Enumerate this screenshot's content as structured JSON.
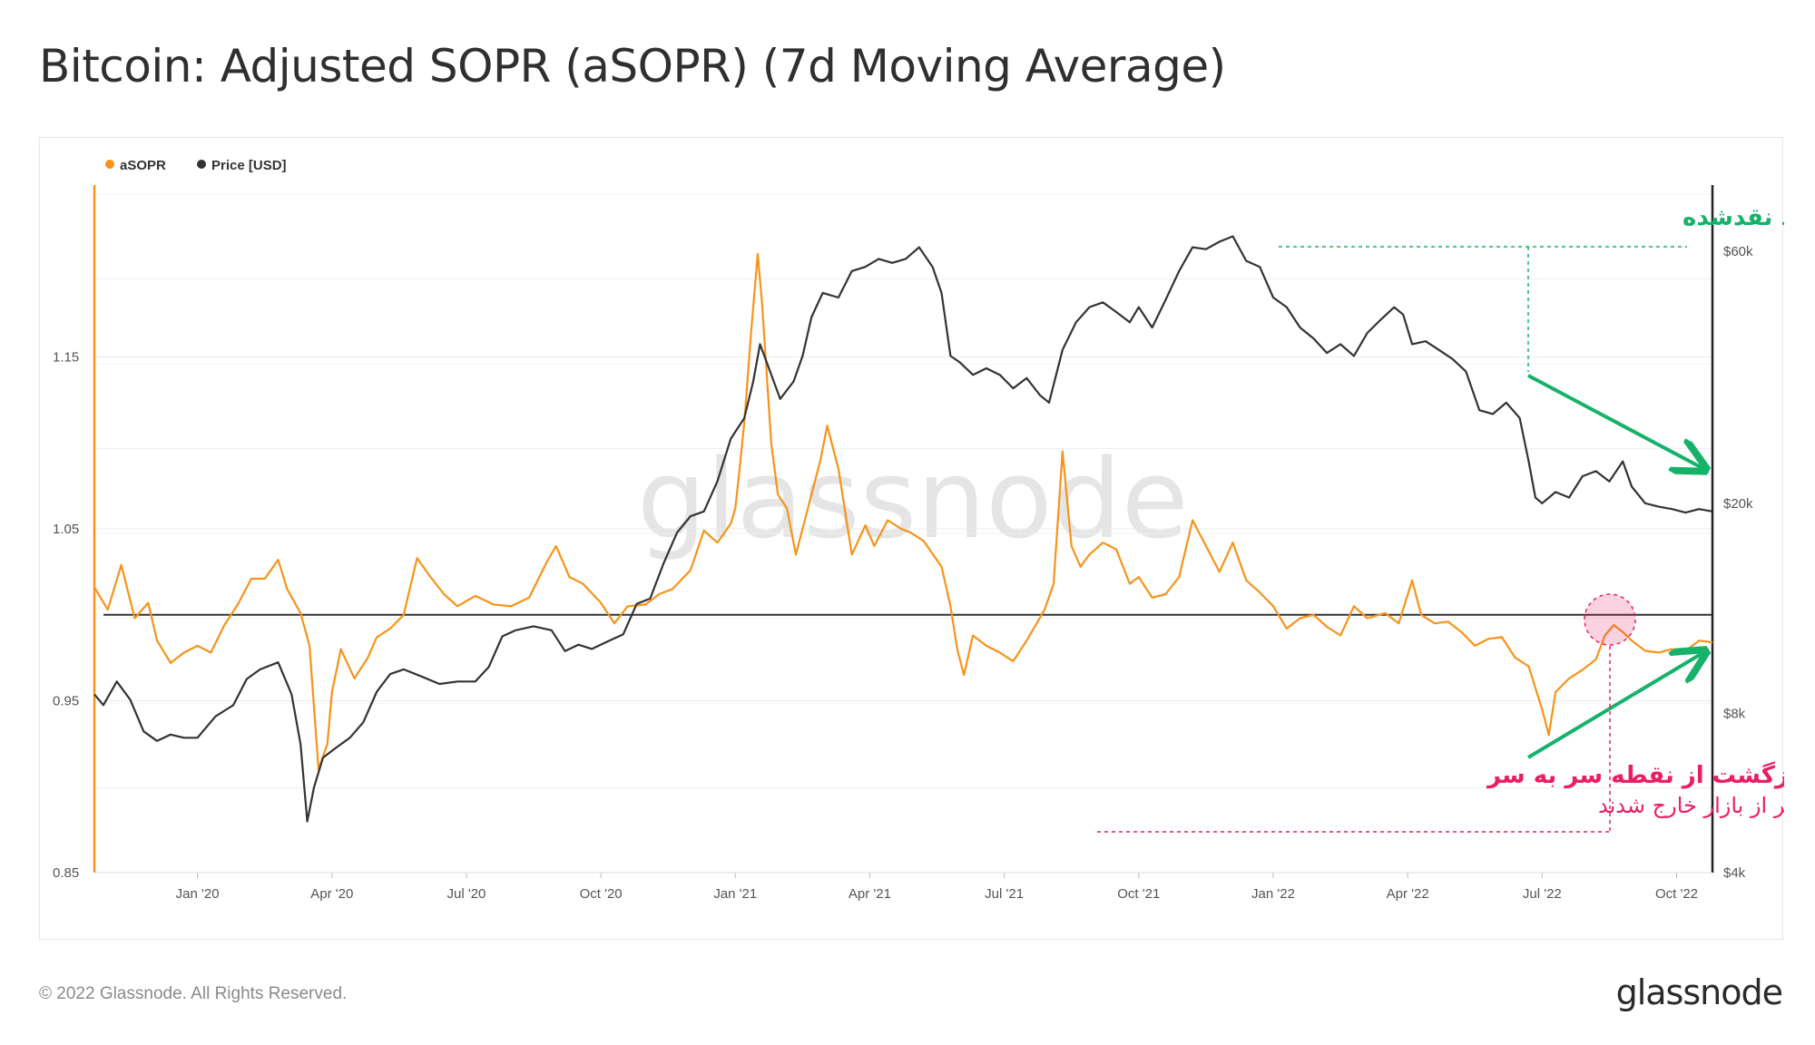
{
  "title": "Bitcoin: Adjusted SOPR (aSOPR) (7d Moving Average)",
  "footer": {
    "copyright": "© 2022 Glassnode. All Rights Reserved.",
    "brand": "glassnode"
  },
  "chart_data": {
    "type": "line",
    "title": "Bitcoin: Adjusted SOPR (aSOPR) (7d Moving Average)",
    "watermark": "glassnode",
    "legend": [
      {
        "name": "aSOPR",
        "color": "#f7931a"
      },
      {
        "name": "Price [USD]",
        "color": "#333333"
      }
    ],
    "x_ticks": [
      "Jan '20",
      "Apr '20",
      "Jul '20",
      "Oct '20",
      "Jan '21",
      "Apr '21",
      "Jul '21",
      "Oct '21",
      "Jan '22",
      "Apr '22",
      "Jul '22",
      "Oct '22"
    ],
    "y_left": {
      "ticks": [
        "0.85",
        "0.95",
        "1.05",
        "1.15"
      ],
      "tick_values": [
        0.85,
        0.95,
        1.05,
        1.15
      ],
      "range": [
        0.85,
        1.25
      ],
      "reference_line": 1.0
    },
    "y_right": {
      "ticks": [
        "$4k",
        "$8k",
        "$20k",
        "$60k"
      ],
      "tick_values": [
        4000,
        8000,
        20000,
        60000
      ],
      "range": [
        4000,
        80000
      ],
      "scale": "log"
    },
    "x_range_months": [
      -2.3,
      33.8
    ],
    "series": [
      {
        "name": "aSOPR",
        "color": "#f7931a",
        "axis": "left",
        "points": [
          [
            -2.3,
            1.016
          ],
          [
            -2.0,
            1.003
          ],
          [
            -1.7,
            1.029
          ],
          [
            -1.4,
            0.998
          ],
          [
            -1.1,
            1.007
          ],
          [
            -0.9,
            0.985
          ],
          [
            -0.6,
            0.972
          ],
          [
            -0.3,
            0.978
          ],
          [
            0.0,
            0.982
          ],
          [
            0.3,
            0.978
          ],
          [
            0.6,
            0.994
          ],
          [
            0.9,
            1.006
          ],
          [
            1.2,
            1.021
          ],
          [
            1.5,
            1.021
          ],
          [
            1.8,
            1.032
          ],
          [
            2.0,
            1.015
          ],
          [
            2.3,
            1.001
          ],
          [
            2.5,
            0.982
          ],
          [
            2.7,
            0.91
          ],
          [
            2.9,
            0.925
          ],
          [
            3.0,
            0.955
          ],
          [
            3.2,
            0.98
          ],
          [
            3.5,
            0.963
          ],
          [
            3.8,
            0.975
          ],
          [
            4.0,
            0.987
          ],
          [
            4.3,
            0.992
          ],
          [
            4.6,
            1.0
          ],
          [
            4.9,
            1.033
          ],
          [
            5.2,
            1.022
          ],
          [
            5.5,
            1.012
          ],
          [
            5.8,
            1.005
          ],
          [
            6.2,
            1.011
          ],
          [
            6.6,
            1.006
          ],
          [
            7.0,
            1.005
          ],
          [
            7.4,
            1.01
          ],
          [
            7.8,
            1.031
          ],
          [
            8.0,
            1.04
          ],
          [
            8.3,
            1.022
          ],
          [
            8.6,
            1.018
          ],
          [
            9.0,
            1.007
          ],
          [
            9.3,
            0.995
          ],
          [
            9.6,
            1.005
          ],
          [
            10.0,
            1.006
          ],
          [
            10.3,
            1.012
          ],
          [
            10.6,
            1.015
          ],
          [
            11.0,
            1.026
          ],
          [
            11.3,
            1.049
          ],
          [
            11.6,
            1.042
          ],
          [
            11.9,
            1.053
          ],
          [
            12.0,
            1.062
          ],
          [
            12.1,
            1.086
          ],
          [
            12.2,
            1.112
          ],
          [
            12.35,
            1.164
          ],
          [
            12.5,
            1.21
          ],
          [
            12.6,
            1.18
          ],
          [
            12.7,
            1.14
          ],
          [
            12.8,
            1.1
          ],
          [
            12.95,
            1.07
          ],
          [
            13.15,
            1.062
          ],
          [
            13.35,
            1.035
          ],
          [
            13.6,
            1.06
          ],
          [
            13.9,
            1.09
          ],
          [
            14.05,
            1.11
          ],
          [
            14.3,
            1.085
          ],
          [
            14.6,
            1.035
          ],
          [
            14.9,
            1.052
          ],
          [
            15.1,
            1.04
          ],
          [
            15.4,
            1.055
          ],
          [
            15.7,
            1.05
          ],
          [
            15.9,
            1.048
          ],
          [
            16.2,
            1.043
          ],
          [
            16.6,
            1.028
          ],
          [
            16.8,
            1.005
          ],
          [
            16.95,
            0.98
          ],
          [
            17.1,
            0.965
          ],
          [
            17.3,
            0.988
          ],
          [
            17.6,
            0.982
          ],
          [
            17.9,
            0.978
          ],
          [
            18.2,
            0.973
          ],
          [
            18.5,
            0.985
          ],
          [
            18.9,
            1.003
          ],
          [
            19.1,
            1.018
          ],
          [
            19.3,
            1.095
          ],
          [
            19.5,
            1.04
          ],
          [
            19.7,
            1.028
          ],
          [
            19.9,
            1.035
          ],
          [
            20.2,
            1.042
          ],
          [
            20.5,
            1.038
          ],
          [
            20.8,
            1.018
          ],
          [
            21.0,
            1.022
          ],
          [
            21.3,
            1.01
          ],
          [
            21.6,
            1.012
          ],
          [
            21.9,
            1.022
          ],
          [
            22.2,
            1.055
          ],
          [
            22.5,
            1.04
          ],
          [
            22.8,
            1.025
          ],
          [
            23.1,
            1.042
          ],
          [
            23.4,
            1.02
          ],
          [
            23.7,
            1.013
          ],
          [
            24.0,
            1.005
          ],
          [
            24.3,
            0.992
          ],
          [
            24.6,
            0.998
          ],
          [
            24.9,
            1.0
          ],
          [
            25.2,
            0.993
          ],
          [
            25.5,
            0.988
          ],
          [
            25.8,
            1.005
          ],
          [
            26.1,
            0.998
          ],
          [
            26.5,
            1.001
          ],
          [
            26.8,
            0.995
          ],
          [
            27.1,
            1.02
          ],
          [
            27.3,
            1.0
          ],
          [
            27.6,
            0.995
          ],
          [
            27.9,
            0.996
          ],
          [
            28.2,
            0.99
          ],
          [
            28.5,
            0.982
          ],
          [
            28.8,
            0.986
          ],
          [
            29.1,
            0.987
          ],
          [
            29.4,
            0.975
          ],
          [
            29.7,
            0.97
          ],
          [
            30.0,
            0.945
          ],
          [
            30.15,
            0.93
          ],
          [
            30.3,
            0.955
          ],
          [
            30.6,
            0.963
          ],
          [
            30.9,
            0.968
          ],
          [
            31.2,
            0.974
          ],
          [
            31.4,
            0.988
          ],
          [
            31.6,
            0.994
          ],
          [
            31.8,
            0.99
          ],
          [
            32.0,
            0.985
          ],
          [
            32.3,
            0.979
          ],
          [
            32.6,
            0.978
          ],
          [
            32.9,
            0.98
          ],
          [
            33.2,
            0.979
          ],
          [
            33.5,
            0.985
          ],
          [
            33.8,
            0.984
          ]
        ]
      },
      {
        "name": "Price [USD]",
        "color": "#333333",
        "axis": "right",
        "points": [
          [
            -2.3,
            8700
          ],
          [
            -2.1,
            8300
          ],
          [
            -1.8,
            9200
          ],
          [
            -1.5,
            8500
          ],
          [
            -1.2,
            7400
          ],
          [
            -0.9,
            7100
          ],
          [
            -0.6,
            7300
          ],
          [
            -0.3,
            7200
          ],
          [
            0.0,
            7200
          ],
          [
            0.4,
            7900
          ],
          [
            0.8,
            8300
          ],
          [
            1.1,
            9300
          ],
          [
            1.4,
            9700
          ],
          [
            1.8,
            10000
          ],
          [
            2.1,
            8700
          ],
          [
            2.3,
            7000
          ],
          [
            2.45,
            5000
          ],
          [
            2.6,
            5800
          ],
          [
            2.8,
            6600
          ],
          [
            3.1,
            6900
          ],
          [
            3.4,
            7200
          ],
          [
            3.7,
            7700
          ],
          [
            4.0,
            8800
          ],
          [
            4.3,
            9500
          ],
          [
            4.6,
            9700
          ],
          [
            5.0,
            9400
          ],
          [
            5.4,
            9100
          ],
          [
            5.8,
            9200
          ],
          [
            6.2,
            9200
          ],
          [
            6.5,
            9800
          ],
          [
            6.8,
            11200
          ],
          [
            7.1,
            11500
          ],
          [
            7.5,
            11700
          ],
          [
            7.9,
            11500
          ],
          [
            8.2,
            10500
          ],
          [
            8.5,
            10800
          ],
          [
            8.8,
            10600
          ],
          [
            9.2,
            11000
          ],
          [
            9.5,
            11300
          ],
          [
            9.8,
            12900
          ],
          [
            10.1,
            13200
          ],
          [
            10.4,
            15400
          ],
          [
            10.7,
            17600
          ],
          [
            11.0,
            18900
          ],
          [
            11.3,
            19300
          ],
          [
            11.6,
            22000
          ],
          [
            11.9,
            26500
          ],
          [
            12.2,
            29000
          ],
          [
            12.4,
            34000
          ],
          [
            12.55,
            40000
          ],
          [
            12.75,
            36000
          ],
          [
            13.0,
            31500
          ],
          [
            13.3,
            34000
          ],
          [
            13.5,
            38000
          ],
          [
            13.7,
            45000
          ],
          [
            13.95,
            50000
          ],
          [
            14.3,
            49000
          ],
          [
            14.6,
            55000
          ],
          [
            14.9,
            56000
          ],
          [
            15.2,
            58000
          ],
          [
            15.5,
            57000
          ],
          [
            15.8,
            58000
          ],
          [
            16.1,
            61000
          ],
          [
            16.4,
            56000
          ],
          [
            16.6,
            50000
          ],
          [
            16.8,
            38000
          ],
          [
            17.0,
            37000
          ],
          [
            17.3,
            35000
          ],
          [
            17.6,
            36000
          ],
          [
            17.9,
            35000
          ],
          [
            18.2,
            33000
          ],
          [
            18.5,
            34500
          ],
          [
            18.8,
            32000
          ],
          [
            19.0,
            31000
          ],
          [
            19.3,
            39000
          ],
          [
            19.6,
            44000
          ],
          [
            19.9,
            47000
          ],
          [
            20.2,
            48000
          ],
          [
            20.5,
            46000
          ],
          [
            20.8,
            44000
          ],
          [
            21.0,
            47000
          ],
          [
            21.3,
            43000
          ],
          [
            21.6,
            48500
          ],
          [
            21.9,
            55000
          ],
          [
            22.2,
            61000
          ],
          [
            22.5,
            60500
          ],
          [
            22.8,
            62500
          ],
          [
            23.1,
            64000
          ],
          [
            23.4,
            57500
          ],
          [
            23.7,
            56000
          ],
          [
            24.0,
            49000
          ],
          [
            24.3,
            47000
          ],
          [
            24.6,
            43000
          ],
          [
            24.9,
            41000
          ],
          [
            25.2,
            38500
          ],
          [
            25.5,
            40000
          ],
          [
            25.8,
            38000
          ],
          [
            26.1,
            42000
          ],
          [
            26.4,
            44500
          ],
          [
            26.7,
            47000
          ],
          [
            26.9,
            45500
          ],
          [
            27.1,
            40000
          ],
          [
            27.4,
            40500
          ],
          [
            27.7,
            39000
          ],
          [
            28.0,
            37500
          ],
          [
            28.3,
            35500
          ],
          [
            28.6,
            30000
          ],
          [
            28.9,
            29500
          ],
          [
            29.2,
            31000
          ],
          [
            29.5,
            29000
          ],
          [
            29.7,
            24000
          ],
          [
            29.85,
            20500
          ],
          [
            30.0,
            20000
          ],
          [
            30.3,
            21000
          ],
          [
            30.6,
            20500
          ],
          [
            30.9,
            22500
          ],
          [
            31.2,
            23000
          ],
          [
            31.5,
            22000
          ],
          [
            31.8,
            24000
          ],
          [
            32.0,
            21500
          ],
          [
            32.3,
            20000
          ],
          [
            32.6,
            19700
          ],
          [
            32.9,
            19500
          ],
          [
            33.2,
            19200
          ],
          [
            33.5,
            19500
          ],
          [
            33.8,
            19300
          ]
        ]
      }
    ],
    "annotations": [
      {
        "title": "واگرایی میان قیمت و سود نقدشده",
        "color": "#17b26a"
      },
      {
        "title": "بازگشت از نقطه سر به سر",
        "subtitle": "سرمایه گذاران در نقطه سربه سر از بازار خارج شدند",
        "color": "#e91e63"
      }
    ]
  }
}
